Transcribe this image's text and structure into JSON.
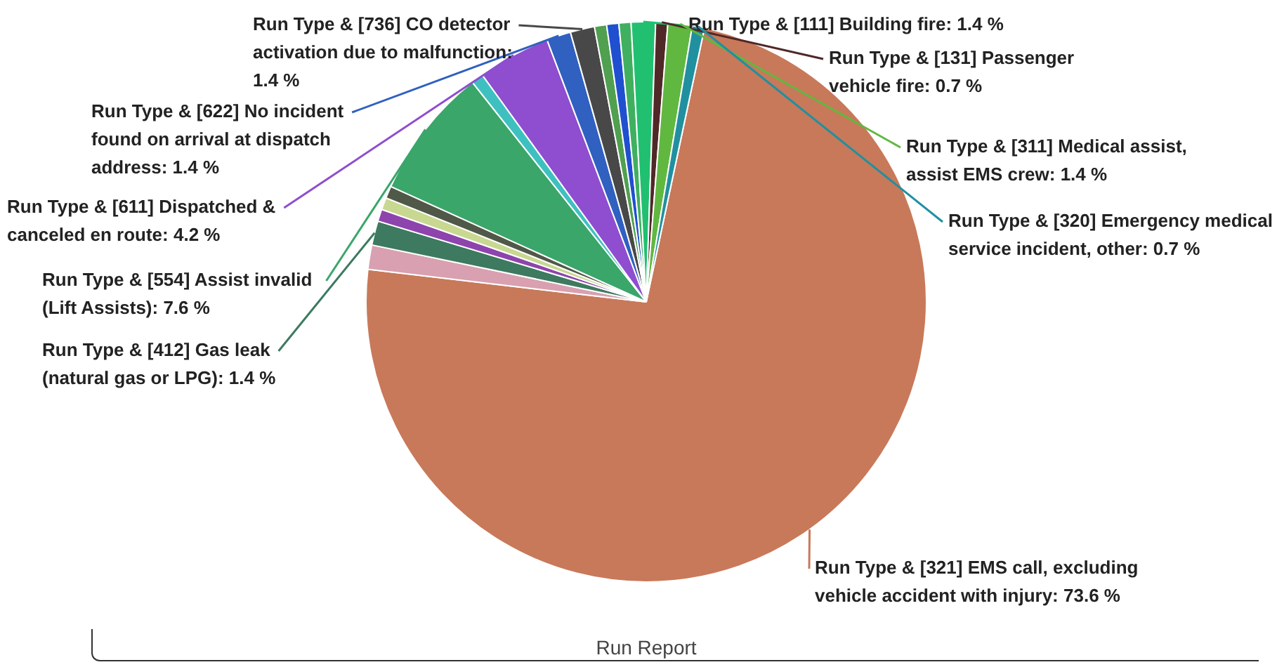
{
  "chart_data": {
    "type": "pie",
    "categories": [
      "Run Type & [321] EMS call, excluding vehicle accident with injury: 73.6 %",
      null,
      "Run Type & [412] Gas leak (natural gas or LPG): 1.4 %",
      null,
      null,
      null,
      "Run Type & [554] Assist invalid  (Lift Assists): 7.6 %",
      null,
      "Run Type & [611] Dispatched & canceled en route: 4.2 %",
      "Run Type & [622] No incident found on arrival at dispatch address: 1.4 %",
      "Run Type & [736] CO detector activation due to malfunction: 1.4 %",
      null,
      null,
      null,
      "Run Type & [111] Building fire: 1.4 %",
      "Run Type & [131] Passenger vehicle fire: 0.7 %",
      "Run Type & [311] Medical assist, assist EMS crew: 1.4 %",
      "Run Type & [320] Emergency medical service incident, other: 0.7 %"
    ],
    "values": [
      73.6,
      1.4,
      1.4,
      0.7,
      0.7,
      0.7,
      7.6,
      0.7,
      4.2,
      1.4,
      1.4,
      0.7,
      0.7,
      0.7,
      1.4,
      0.7,
      1.4,
      0.7
    ],
    "colors": [
      "#c8795a",
      "#d8a0b0",
      "#3d7a60",
      "#8e44ad",
      "#c8d890",
      "#505848",
      "#3aa66a",
      "#3ec0c0",
      "#8e4ecf",
      "#3060c0",
      "#484848",
      "#50a050",
      "#2050d0",
      "#40b060",
      "#20c070",
      "#502828",
      "#60b840",
      "#2090a0"
    ],
    "annotations": [
      "Run Report"
    ]
  }
}
